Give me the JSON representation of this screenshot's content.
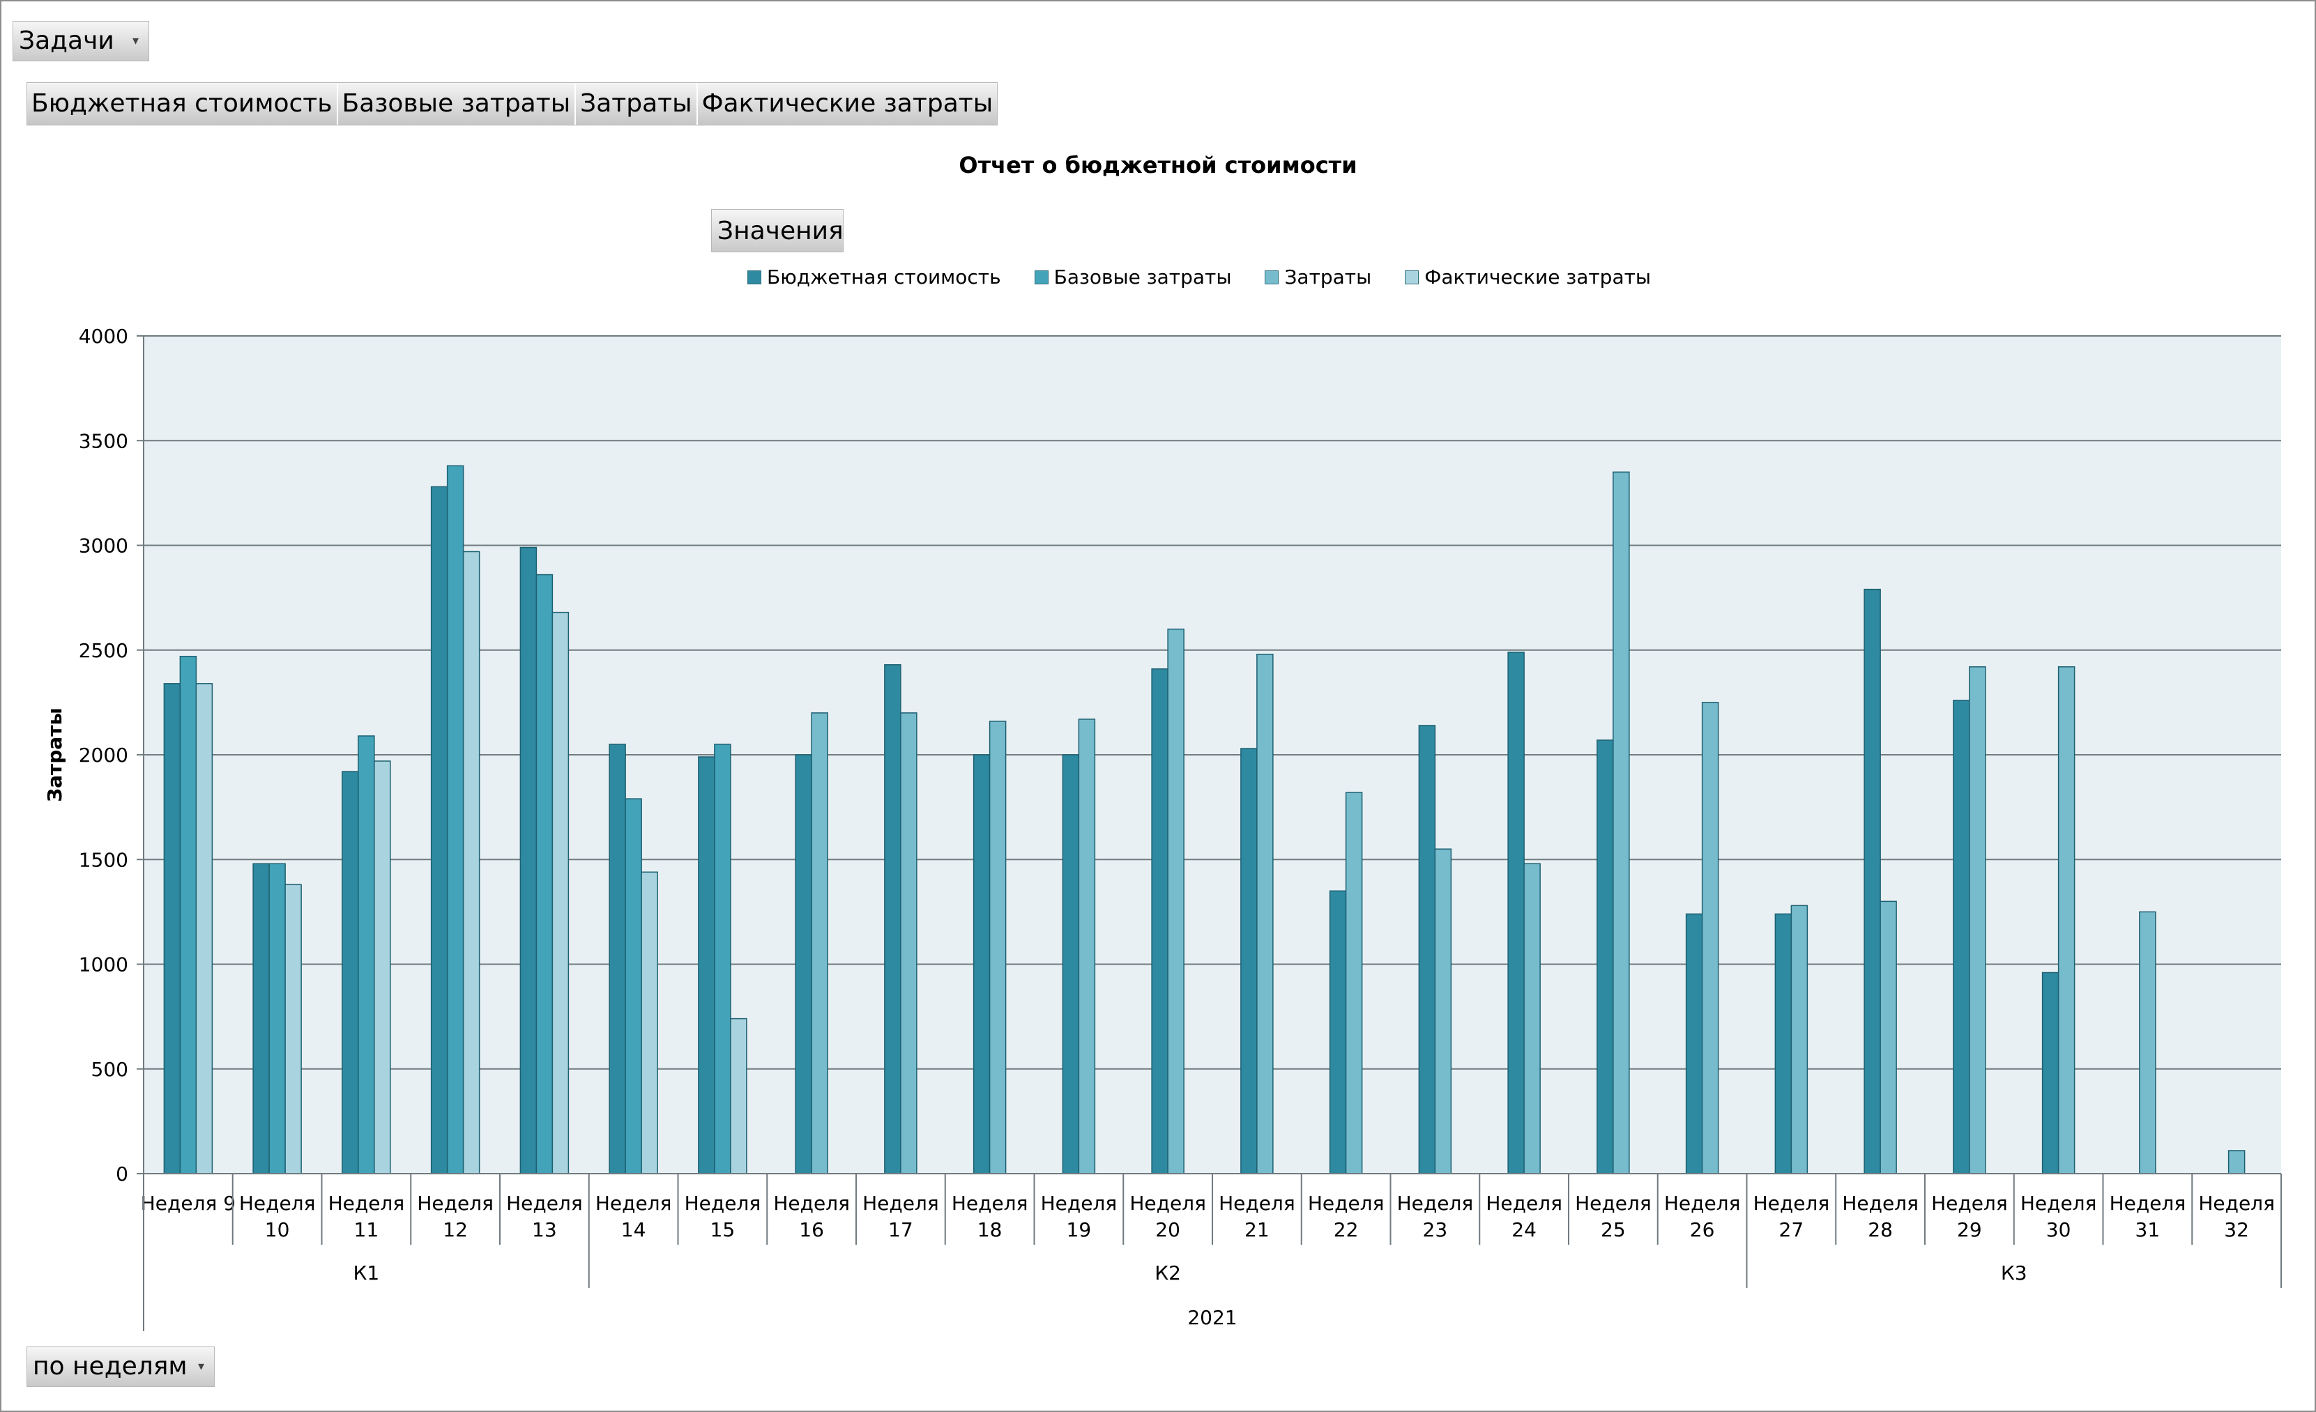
{
  "filter": {
    "tasks_label": "Задачи",
    "period_label": "по неделям"
  },
  "fields": [
    "Бюджетная стоимость",
    "Базовые затраты",
    "Затраты",
    "Фактические затраты"
  ],
  "values_button": "Значения",
  "icons": {
    "dropdown": "dropdown-arrow-icon"
  },
  "colors": {
    "plot_bg": "#e8f0f3",
    "series": [
      "#2e8aa0",
      "#42a3b9",
      "#77bccd",
      "#a9d4df"
    ],
    "stroke": "#1d6072"
  },
  "chart_data": {
    "type": "bar",
    "title": "Отчет о бюджетной стоимости",
    "ylabel": "Затраты",
    "xlabel": "",
    "ylim": [
      0,
      4000
    ],
    "yticks": [
      0,
      500,
      1000,
      1500,
      2000,
      2500,
      3000,
      3500,
      4000
    ],
    "grid": true,
    "legend_position": "top",
    "categories": [
      "Неделя 9",
      "Неделя 10",
      "Неделя 11",
      "Неделя 12",
      "Неделя 13",
      "Неделя 14",
      "Неделя 15",
      "Неделя 16",
      "Неделя 17",
      "Неделя 18",
      "Неделя 19",
      "Неделя 20",
      "Неделя 21",
      "Неделя 22",
      "Неделя 23",
      "Неделя 24",
      "Неделя 25",
      "Неделя 26",
      "Неделя 27",
      "Неделя 28",
      "Неделя 29",
      "Неделя 30",
      "Неделя 31",
      "Неделя 32"
    ],
    "quarters": [
      {
        "label": "К1",
        "weeks": 5
      },
      {
        "label": "К2",
        "weeks": 13
      },
      {
        "label": "К3",
        "weeks": 6
      }
    ],
    "year": "2021",
    "series": [
      {
        "name": "Бюджетная стоимость",
        "values": [
          2340,
          1480,
          1920,
          3280,
          2990,
          2050,
          1990,
          2000,
          2430,
          2000,
          2000,
          2410,
          2030,
          1350,
          2140,
          2490,
          2070,
          1240,
          1240,
          2790,
          2260,
          960,
          null,
          null
        ]
      },
      {
        "name": "Базовые затраты",
        "values": [
          2470,
          1480,
          2090,
          3380,
          2860,
          1790,
          2050,
          null,
          null,
          null,
          null,
          null,
          null,
          null,
          null,
          null,
          null,
          null,
          null,
          null,
          null,
          null,
          null,
          null
        ]
      },
      {
        "name": "Затраты",
        "values": [
          null,
          null,
          null,
          null,
          null,
          null,
          null,
          2200,
          2200,
          2160,
          2170,
          2600,
          2480,
          1820,
          1550,
          1480,
          3350,
          2250,
          1280,
          1300,
          2420,
          2420,
          1250,
          110
        ]
      },
      {
        "name": "Фактические затраты",
        "values": [
          2340,
          1380,
          1970,
          2970,
          2680,
          1440,
          740,
          null,
          null,
          null,
          null,
          null,
          null,
          null,
          null,
          null,
          null,
          null,
          null,
          null,
          null,
          null,
          null,
          null
        ]
      }
    ]
  }
}
